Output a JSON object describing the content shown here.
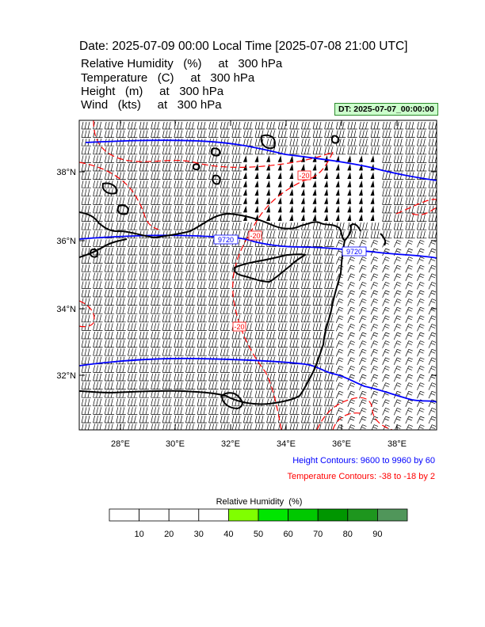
{
  "header": {
    "title": "Date: 2025-07-09  00:00 Local Time [2025-07-08  21:00 UTC]",
    "rows": [
      "Relative Humidity   (%)     at   300 hPa",
      "Temperature   (C)     at   300 hPa",
      "Height   (m)     at   300 hPa",
      "Wind   (kts)     at   300 hPa"
    ],
    "dt_badge": "DT: 2025-07-07_00:00:00"
  },
  "map": {
    "lat_labels": [
      "38°N",
      "36°N",
      "34°N",
      "32°N"
    ],
    "lon_labels": [
      "28°E",
      "30°E",
      "32°E",
      "34°E",
      "36°E",
      "38°E"
    ],
    "height_contour_labels": [
      "9720",
      "9720"
    ],
    "temperature_contour_labels": [
      "-20",
      "-20",
      "-20"
    ],
    "colors": {
      "height": "#0000ff",
      "temperature": "#ff0000",
      "coast": "#000000"
    }
  },
  "legend": {
    "height_text": "Height Contours: 9600 to 9960 by 60",
    "temperature_text": "Temperature Contours: -38 to -18 by 2"
  },
  "colorbar": {
    "title": "Relative Humidity  (%)",
    "labels": [
      "10",
      "20",
      "30",
      "40",
      "50",
      "60",
      "70",
      "80",
      "90"
    ],
    "colors": [
      "#ffffff",
      "#ffffff",
      "#ffffff",
      "#ffffff",
      "#80ff00",
      "#00e600",
      "#00c800",
      "#009600",
      "#1e961e",
      "#50965a"
    ]
  }
}
